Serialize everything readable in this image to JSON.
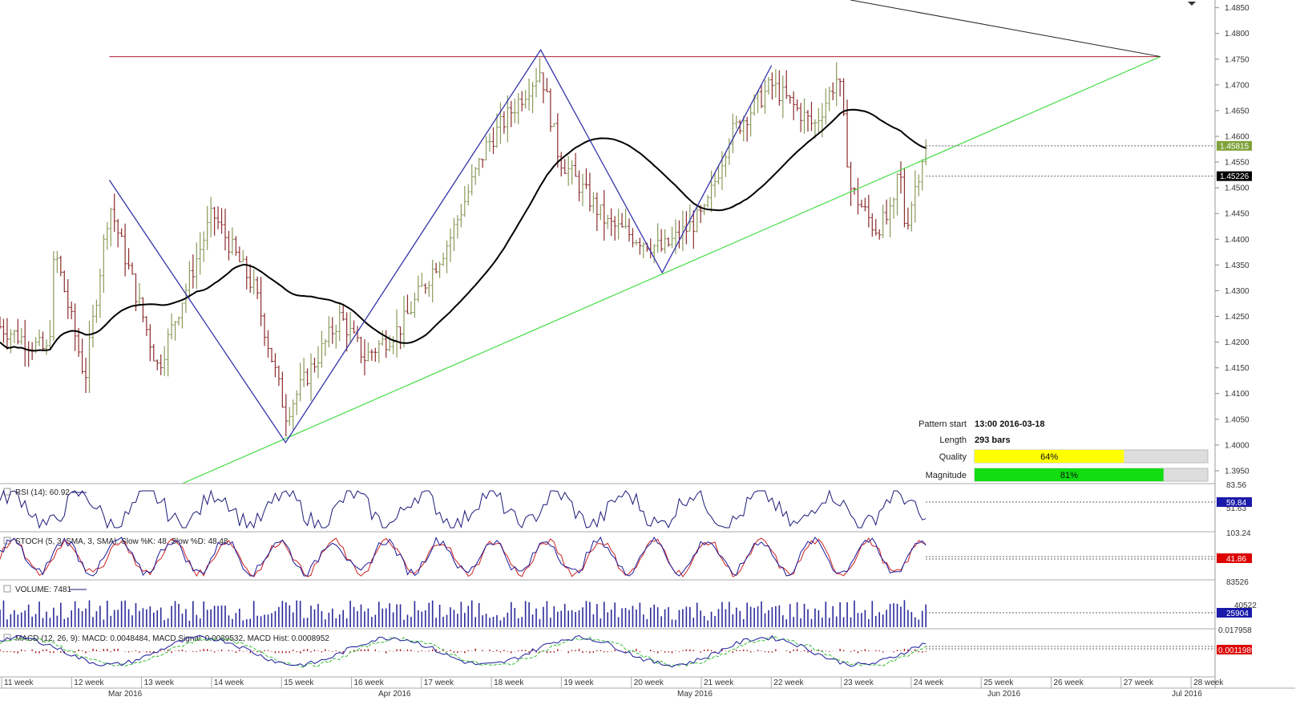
{
  "chart_data": {
    "type": "bar",
    "subtype": "ohlc-price-with-indicators",
    "price_axis": {
      "ticks": [
        "1.4850",
        "1.4800",
        "1.4750",
        "1.4700",
        "1.4650",
        "1.4600",
        "1.4550",
        "1.4500",
        "1.4450",
        "1.4400",
        "1.4350",
        "1.4300",
        "1.4250",
        "1.4200",
        "1.4150",
        "1.4100",
        "1.4050",
        "1.4000",
        "1.3950"
      ],
      "ylim": [
        1.3925,
        1.4865
      ]
    },
    "current_price_labels": [
      {
        "text": "1.45815",
        "value": 1.45815,
        "color": "#7fa33a"
      },
      {
        "text": "1.45226",
        "value": 1.45226,
        "color": "#000000"
      }
    ],
    "week_labels": [
      "11 week",
      "12 week",
      "13 week",
      "14 week",
      "15 week",
      "16 week",
      "17 week",
      "18 week",
      "19 week",
      "20 week",
      "21 week",
      "22 week",
      "23 week",
      "24 week",
      "25 week",
      "26 week",
      "27 week",
      "28 week"
    ],
    "month_labels": [
      "Mar 2016",
      "Apr 2016",
      "May 2016",
      "Jun 2016",
      "Jul 2016"
    ],
    "pattern": {
      "zigzag": [
        {
          "bar": 0.09,
          "price": 1.4515
        },
        {
          "bar": 0.235,
          "price": 1.4005
        },
        {
          "bar": 0.445,
          "price": 1.4768
        },
        {
          "bar": 0.545,
          "price": 1.4335
        },
        {
          "bar": 0.635,
          "price": 1.4738
        }
      ],
      "resistance_price": 1.4755,
      "support_line": [
        {
          "bar": 0.15,
          "price": 1.3925
        },
        {
          "bar": 0.955,
          "price": 1.4755
        }
      ],
      "descending_line": [
        {
          "bar": 0.7,
          "price": 1.4865
        },
        {
          "bar": 0.955,
          "price": 1.4755
        }
      ]
    },
    "info": {
      "pattern_start_label": "Pattern start",
      "pattern_start_value": "13:00 2016-03-18",
      "length_label": "Length",
      "length_value": "293 bars",
      "quality_label": "Quality",
      "quality_value": 64,
      "quality_text": "64%",
      "magnitude_label": "Magnitude",
      "magnitude_value": 81,
      "magnitude_text": "81%"
    },
    "rsi": {
      "title": "RSI (14): 60.92",
      "ticks": [
        "83.56",
        "51.63"
      ],
      "tag": "59.84",
      "line_color": "#1a1a7a"
    },
    "stoch": {
      "title": "STOCH (5, 3, SMA, 3, SMA): Slow %K: 48, Slow %D: 48.48",
      "ticks": [
        "103.24"
      ],
      "tag": "41.86",
      "k_color": "#1a1a9a",
      "d_color": "#cc2222"
    },
    "volume": {
      "title": "VOLUME: 7481",
      "ticks": [
        "83526",
        "40522"
      ],
      "tag": "25904",
      "bar_color": "#2a2a9a"
    },
    "macd": {
      "title": "MACD (12, 26, 9): MACD: 0.0048484, MACD Signal: 0.0039532, MACD Hist: 0.0008952",
      "ticks": [
        "0.017958"
      ],
      "tag": "0.0011989",
      "macd_color": "#1a1a9a",
      "signal_color": "#33bb33",
      "hist_color": "#aa2222"
    }
  },
  "colors": {
    "bull_bar": "#8a9a5b",
    "bear_bar": "#8b2c2c",
    "ma_line": "#000000",
    "zigzag": "#3333aa",
    "support": "#44dd44",
    "resistance": "#aa2233"
  }
}
